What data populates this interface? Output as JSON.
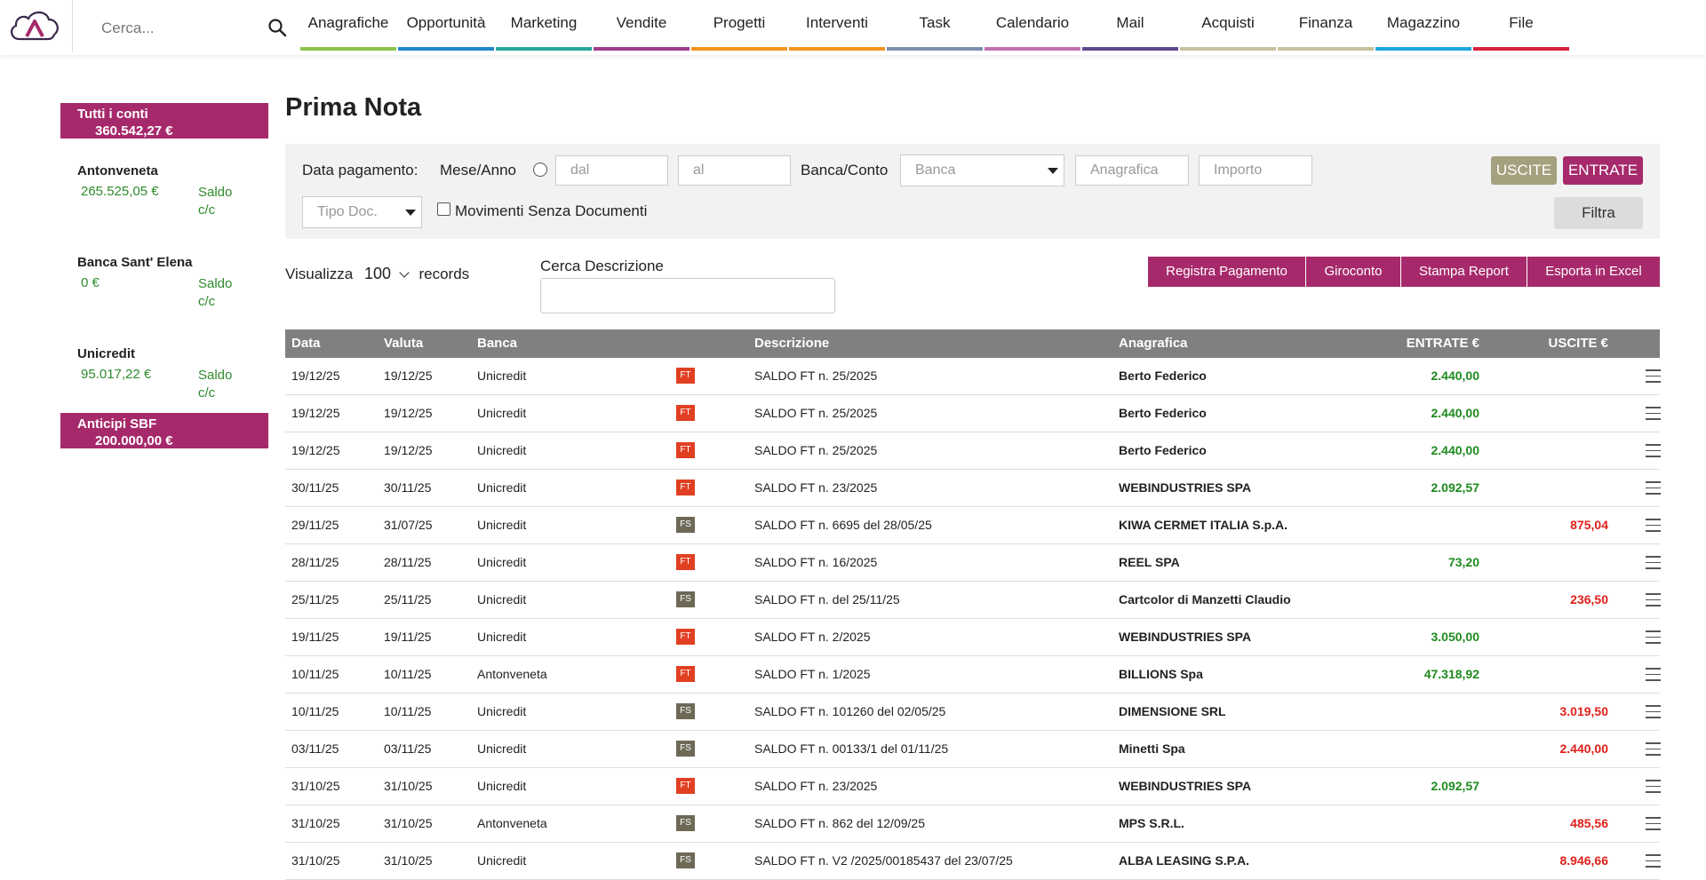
{
  "header": {
    "search_placeholder": "Cerca...",
    "nav": [
      {
        "label": "Anagrafiche",
        "color": "#8bc34a"
      },
      {
        "label": "Opportunità",
        "color": "#1e88c7"
      },
      {
        "label": "Marketing",
        "color": "#26a69a"
      },
      {
        "label": "Vendite",
        "color": "#a03c8c"
      },
      {
        "label": "Progetti",
        "color": "#f59321"
      },
      {
        "label": "Interventi",
        "color": "#f59321"
      },
      {
        "label": "Task",
        "color": "#7b8fb0"
      },
      {
        "label": "Calendario",
        "color": "#c070b0"
      },
      {
        "label": "Mail",
        "color": "#5d4a8c"
      },
      {
        "label": "Acquisti",
        "color": "#c6c29c"
      },
      {
        "label": "Finanza",
        "color": "#c6c29c"
      },
      {
        "label": "Magazzino",
        "color": "#1ea6e0"
      },
      {
        "label": "File",
        "color": "#d6203a"
      }
    ]
  },
  "sidebar": {
    "all_accounts": {
      "label": "Tutti i conti",
      "amount": "360.542,27 €"
    },
    "accounts": [
      {
        "name": "Antonveneta",
        "amount": "265.525,05 €",
        "saldo": "Saldo c/c"
      },
      {
        "name": "Banca Sant' Elena",
        "amount": "0 €",
        "saldo": "Saldo c/c"
      },
      {
        "name": "Unicredit",
        "amount": "95.017,22 €",
        "saldo": "Saldo c/c"
      }
    ],
    "anticipi": {
      "label": "Anticipi SBF",
      "amount": "200.000,00 €"
    }
  },
  "page": {
    "title": "Prima Nota"
  },
  "filters": {
    "data_pagamento": "Data pagamento:",
    "mese_anno": "Mese/Anno",
    "dal_placeholder": "dal",
    "al_placeholder": "al",
    "banca_conto": "Banca/Conto",
    "banca_placeholder": "Banca",
    "anagrafica_placeholder": "Anagrafica",
    "importo_placeholder": "Importo",
    "tipo_doc_placeholder": "Tipo Doc.",
    "movimenti_label": "Movimenti Senza Documenti",
    "uscite": "USCITE",
    "entrate": "ENTRATE",
    "filtra": "Filtra"
  },
  "toolbar": {
    "visualizza": "Visualizza",
    "records_count": "100",
    "records": "records",
    "cerca_descrizione": "Cerca Descrizione",
    "actions": [
      "Registra Pagamento",
      "Giroconto",
      "Stampa Report",
      "Esporta in Excel"
    ]
  },
  "table": {
    "columns": {
      "data": "Data",
      "valuta": "Valuta",
      "banca": "Banca",
      "descrizione": "Descrizione",
      "anagrafica": "Anagrafica",
      "entrate": "ENTRATE €",
      "uscite": "USCITE €"
    },
    "rows": [
      {
        "data": "19/12/25",
        "valuta": "19/12/25",
        "banca": "Unicredit",
        "tipo": "FT",
        "descrizione": "SALDO FT n. 25/2025",
        "anagrafica": "Berto Federico",
        "entrate": "2.440,00",
        "uscite": ""
      },
      {
        "data": "19/12/25",
        "valuta": "19/12/25",
        "banca": "Unicredit",
        "tipo": "FT",
        "descrizione": "SALDO FT n. 25/2025",
        "anagrafica": "Berto Federico",
        "entrate": "2.440,00",
        "uscite": ""
      },
      {
        "data": "19/12/25",
        "valuta": "19/12/25",
        "banca": "Unicredit",
        "tipo": "FT",
        "descrizione": "SALDO FT n. 25/2025",
        "anagrafica": "Berto Federico",
        "entrate": "2.440,00",
        "uscite": ""
      },
      {
        "data": "30/11/25",
        "valuta": "30/11/25",
        "banca": "Unicredit",
        "tipo": "FT",
        "descrizione": "SALDO FT n. 23/2025",
        "anagrafica": "WEBINDUSTRIES SPA",
        "entrate": "2.092,57",
        "uscite": ""
      },
      {
        "data": "29/11/25",
        "valuta": "31/07/25",
        "banca": "Unicredit",
        "tipo": "FS",
        "descrizione": "SALDO FT n. 6695 del 28/05/25",
        "anagrafica": "KIWA CERMET ITALIA S.p.A.",
        "entrate": "",
        "uscite": "875,04"
      },
      {
        "data": "28/11/25",
        "valuta": "28/11/25",
        "banca": "Unicredit",
        "tipo": "FT",
        "descrizione": "SALDO FT n. 16/2025",
        "anagrafica": "REEL SPA",
        "entrate": "73,20",
        "uscite": ""
      },
      {
        "data": "25/11/25",
        "valuta": "25/11/25",
        "banca": "Unicredit",
        "tipo": "FS",
        "descrizione": "SALDO FT n. del 25/11/25",
        "anagrafica": "Cartcolor di Manzetti Claudio",
        "entrate": "",
        "uscite": "236,50"
      },
      {
        "data": "19/11/25",
        "valuta": "19/11/25",
        "banca": "Unicredit",
        "tipo": "FT",
        "descrizione": "SALDO FT n. 2/2025",
        "anagrafica": "WEBINDUSTRIES SPA",
        "entrate": "3.050,00",
        "uscite": ""
      },
      {
        "data": "10/11/25",
        "valuta": "10/11/25",
        "banca": "Antonveneta",
        "tipo": "FT",
        "descrizione": "SALDO FT n. 1/2025",
        "anagrafica": "BILLIONS Spa",
        "entrate": "47.318,92",
        "uscite": ""
      },
      {
        "data": "10/11/25",
        "valuta": "10/11/25",
        "banca": "Unicredit",
        "tipo": "FS",
        "descrizione": "SALDO FT n. 101260 del 02/05/25",
        "anagrafica": "DIMENSIONE SRL",
        "entrate": "",
        "uscite": "3.019,50"
      },
      {
        "data": "03/11/25",
        "valuta": "03/11/25",
        "banca": "Unicredit",
        "tipo": "FS",
        "descrizione": "SALDO FT n. 00133/1 del 01/11/25",
        "anagrafica": "Minetti Spa",
        "entrate": "",
        "uscite": "2.440,00"
      },
      {
        "data": "31/10/25",
        "valuta": "31/10/25",
        "banca": "Unicredit",
        "tipo": "FT",
        "descrizione": "SALDO FT n. 23/2025",
        "anagrafica": "WEBINDUSTRIES SPA",
        "entrate": "2.092,57",
        "uscite": ""
      },
      {
        "data": "31/10/25",
        "valuta": "31/10/25",
        "banca": "Antonveneta",
        "tipo": "FS",
        "descrizione": "SALDO FT n. 862 del 12/09/25",
        "anagrafica": "MPS S.R.L.",
        "entrate": "",
        "uscite": "485,56"
      },
      {
        "data": "31/10/25",
        "valuta": "31/10/25",
        "banca": "Unicredit",
        "tipo": "FS",
        "descrizione": "SALDO FT n. V2 /2025/00185437 del 23/07/25",
        "anagrafica": "ALBA LEASING S.P.A.",
        "entrate": "",
        "uscite": "8.946,66"
      }
    ]
  }
}
